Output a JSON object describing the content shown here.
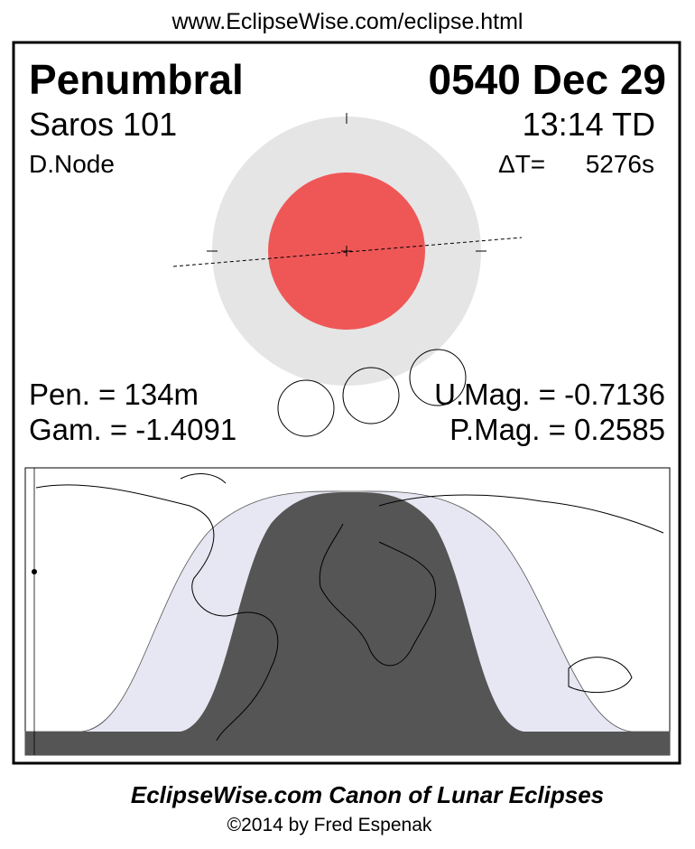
{
  "header": {
    "url": "www.EclipseWise.com/eclipse.html"
  },
  "eclipse": {
    "type": "Penumbral",
    "date": "0540 Dec 29",
    "saros": "Saros 101",
    "time": "13:14 TD",
    "node": "D.Node",
    "delta_t_label": "ΔT=",
    "delta_t": "5276s",
    "pen_duration": "Pen. = 134m",
    "gamma": "Gam. = -1.4091",
    "umbral_mag": "U.Mag. = -0.7136",
    "penumbral_mag": "P.Mag. = 0.2585"
  },
  "footer": {
    "title": "EclipseWise.com Canon of Lunar Eclipses",
    "copyright": "©2014 by Fred Espenak"
  }
}
